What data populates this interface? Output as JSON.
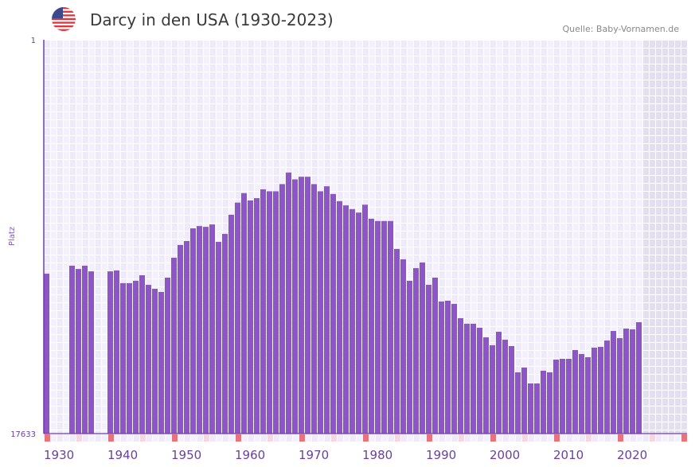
{
  "header": {
    "title": "Darcy in den USA (1930-2023)",
    "source": "Quelle: Baby-Vornamen.de",
    "flag_icon": "us-flag-icon"
  },
  "colors": {
    "bar": "#8e55c6",
    "axis": "#6b3fa0",
    "cell_a": "#efeaf9",
    "cell_b": "#f4f1fc",
    "future": "#e3dfee",
    "decade_marker": "#e8737b",
    "half_decade_marker": "#f6d6df"
  },
  "chart_data": {
    "type": "bar",
    "title": "Darcy in den USA (1930-2023)",
    "xlabel": "",
    "ylabel": "Platz",
    "y_scale": "log",
    "y_reversed": true,
    "ylim": [
      1,
      17633
    ],
    "y_tick_labels": [
      "1",
      "17633"
    ],
    "xlim": [
      1930,
      2030
    ],
    "x_tick_labels": [
      "1930",
      "1940",
      "1950",
      "1960",
      "1970",
      "1980",
      "1990",
      "2000",
      "2010",
      "2020"
    ],
    "future_from": 2024,
    "years": [
      1930,
      1931,
      1932,
      1933,
      1934,
      1935,
      1936,
      1937,
      1938,
      1939,
      1940,
      1941,
      1942,
      1943,
      1944,
      1945,
      1946,
      1947,
      1948,
      1949,
      1950,
      1951,
      1952,
      1953,
      1954,
      1955,
      1956,
      1957,
      1958,
      1959,
      1960,
      1961,
      1962,
      1963,
      1964,
      1965,
      1966,
      1967,
      1968,
      1969,
      1970,
      1971,
      1972,
      1973,
      1974,
      1975,
      1976,
      1977,
      1978,
      1979,
      1980,
      1981,
      1982,
      1983,
      1984,
      1985,
      1986,
      1987,
      1988,
      1989,
      1990,
      1991,
      1992,
      1993,
      1994,
      1995,
      1996,
      1997,
      1998,
      1999,
      2000,
      2001,
      2002,
      2003,
      2004,
      2005,
      2006,
      2007,
      2008,
      2009,
      2010,
      2011,
      2012,
      2013,
      2014,
      2015,
      2016,
      2017,
      2018,
      2019,
      2020,
      2021,
      2022,
      2023
    ],
    "ranks": [
      333,
      null,
      null,
      null,
      273,
      296,
      273,
      314,
      null,
      null,
      314,
      307,
      421,
      421,
      397,
      346,
      439,
      484,
      524,
      367,
      224,
      163,
      148,
      108,
      102,
      104,
      98,
      151,
      124,
      77,
      57,
      45,
      54,
      51,
      41,
      43,
      43,
      36,
      27,
      32,
      30,
      30,
      36,
      43,
      38,
      46,
      55,
      61,
      67,
      73,
      60,
      85,
      90,
      90,
      90,
      180,
      233,
      397,
      290,
      252,
      439,
      367,
      664,
      651,
      704,
      1005,
      1153,
      1153,
      1274,
      1616,
      1968,
      1406,
      1715,
      2008,
      3855,
      3423,
      5083,
      5083,
      3704,
      3855,
      2811,
      2755,
      2755,
      2216,
      2446,
      2646,
      2089,
      2048,
      1750,
      1380,
      1648,
      1300,
      1326,
      1110
    ]
  }
}
